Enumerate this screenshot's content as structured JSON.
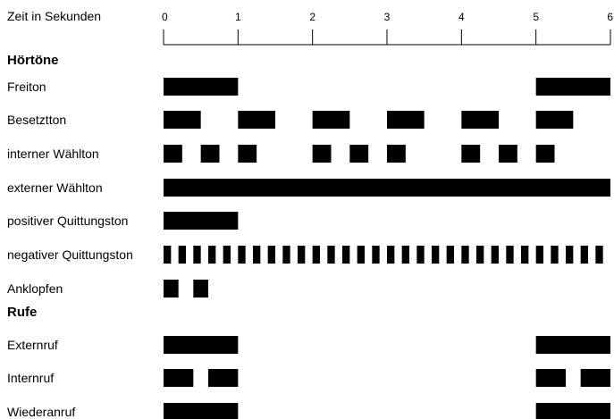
{
  "axis": {
    "label": "Zeit in Sekunden",
    "ticks": [
      "0",
      "1",
      "2",
      "3",
      "4",
      "5",
      "6"
    ],
    "min": 0,
    "max": 6
  },
  "sections": [
    {
      "title": "Hörtöne",
      "rows": [
        {
          "label": "Freiton",
          "segments": [
            [
              0,
              1
            ],
            [
              5,
              6
            ]
          ]
        },
        {
          "label": "Besetztton",
          "segments": [
            [
              0,
              0.5
            ],
            [
              1,
              1.5
            ],
            [
              2,
              2.5
            ],
            [
              3,
              3.5
            ],
            [
              4,
              4.5
            ],
            [
              5,
              5.5
            ]
          ]
        },
        {
          "label": "interner Wählton",
          "segments": [
            [
              0,
              0.25
            ],
            [
              0.5,
              0.75
            ],
            [
              1,
              1.25
            ],
            [
              2,
              2.25
            ],
            [
              2.5,
              2.75
            ],
            [
              3,
              3.25
            ],
            [
              4,
              4.25
            ],
            [
              4.5,
              4.75
            ],
            [
              5,
              5.25
            ]
          ]
        },
        {
          "label": "externer Wählton",
          "segments": [
            [
              0,
              6
            ]
          ]
        },
        {
          "label": "positiver Quittungston",
          "segments": [
            [
              0,
              1
            ]
          ]
        },
        {
          "label": "negativer Quittungston",
          "pattern": {
            "start": 0,
            "on": 0.1,
            "period": 0.2,
            "end": 5.9
          }
        },
        {
          "label": "Anklopfen",
          "segments": [
            [
              0,
              0.2
            ],
            [
              0.4,
              0.6
            ]
          ]
        }
      ]
    },
    {
      "title": "Rufe",
      "rows": [
        {
          "label": "Externruf",
          "segments": [
            [
              0,
              1
            ],
            [
              5,
              6
            ]
          ]
        },
        {
          "label": "Internruf",
          "segments": [
            [
              0,
              0.4
            ],
            [
              0.6,
              1
            ],
            [
              5,
              5.4
            ],
            [
              5.6,
              6
            ]
          ]
        },
        {
          "label": "Wiederanruf",
          "segments": [
            [
              0,
              1
            ],
            [
              5,
              6
            ]
          ]
        }
      ]
    }
  ],
  "colors": {
    "bar": "#000000",
    "text": "#000000",
    "background": "#ffffff"
  }
}
